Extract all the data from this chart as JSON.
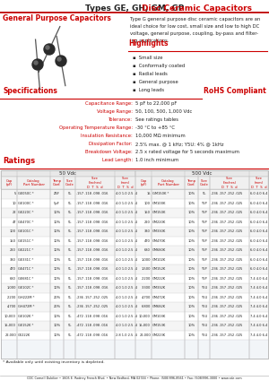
{
  "title": "Types GE, GH, GM, GP",
  "title2": "Disc Ceramic Capacitors",
  "section1": "General Purpose Capacitors",
  "desc_lines": [
    "Type G general purpose disc ceramic capacitors are an",
    "ideal choice for low cost, small size and low to high DC",
    "voltage, general purpose, coupling, by-pass and filter-",
    "ing applications."
  ],
  "highlights_title": "Highlights",
  "highlights": [
    "Small size",
    "Conformally coated",
    "Radial leads",
    "General purpose",
    "Long leads"
  ],
  "specs_title": "Specifications",
  "rohs": "RoHS Compliant",
  "ratings_title": "Ratings",
  "spec_items": [
    [
      "Capacitance Range:",
      "5 pF to 22,000 pF"
    ],
    [
      "Voltage Range:",
      "50, 100, 500, 1,000 Vdc"
    ],
    [
      "Tolerance:",
      "See ratings tables"
    ],
    [
      "Operating Temperature Range:",
      "-30 °C to +85 °C"
    ],
    [
      "Insulation Resistance:",
      "10,000 MΩ minimum"
    ],
    [
      "Dissipation Factor:",
      "2.5% max. @ 1 kHz; Y5U: 4% @ 1kHz"
    ],
    [
      "Breakdown Voltage:",
      "2.5 x rated voltage for 5 seconds maximum"
    ],
    [
      "Lead Length:",
      "1.0 inch minimum"
    ]
  ],
  "table_rows_50v": [
    [
      "5",
      "GE050C *",
      "Z5F",
      "5L",
      ".157 .118 .098 .016",
      "4.0 1.0 2.5 .4"
    ],
    [
      "10",
      "GE100C *",
      "5pF",
      "5L",
      ".157 .118 .098 .016",
      "4.0 1.0 2.5 .4"
    ],
    [
      "22",
      "GE220C *",
      "10%",
      "5L",
      ".157 .118 .098 .016",
      "4.0 1.0 2.5 .4"
    ],
    [
      "47",
      "GE470C *",
      "10%",
      "5L",
      ".157 .118 .098 .016",
      "4.0 1.0 2.5 .4"
    ],
    [
      "100",
      "GE101C *",
      "10%",
      "5L",
      ".157 .118 .098 .016",
      "4.0 1.0 2.5 .4"
    ],
    [
      "150",
      "GE151C *",
      "10%",
      "5L",
      ".157 .118 .098 .016",
      "4.0 1.0 2.5 .4"
    ],
    [
      "220",
      "GE221C *",
      "10%",
      "5L",
      ".157 .118 .098 .016",
      "4.0 1.0 2.5 .4"
    ],
    [
      "330",
      "GE331C *",
      "10%",
      "5L",
      ".157 .118 .098 .016",
      "4.0 1.0 2.5 .4"
    ],
    [
      "470",
      "GE471C *",
      "10%",
      "5L",
      ".157 .118 .098 .016",
      "4.0 1.0 2.5 .4"
    ],
    [
      "680",
      "GE681C *",
      "10%",
      "5L",
      ".157 .118 .098 .016",
      "4.0 1.0 2.5 .4"
    ],
    [
      "1,000",
      "GE102C *",
      "10%",
      "5L",
      ".157 .118 .098 .016",
      "4.0 1.0 2.5 .4"
    ],
    [
      "2,200",
      "GH222M *",
      "20%",
      "5L",
      ".236 .157 .252 .025",
      "4.0 1.0 2.5 .4"
    ],
    [
      "4,700",
      "GH472M *",
      "20%",
      "5L",
      ".236 .157 .252 .025",
      "4.0 1.0 2.5 .4"
    ],
    [
      "10,000",
      "GE102K *",
      "10%",
      "5L",
      ".472 .118 .098 .016",
      "4.0 1.0 2.5 .4"
    ],
    [
      "15,000",
      "GE152K *",
      "10%",
      "5L",
      ".472 .118 .098 .016",
      "4.0 1.0 2.5 .4"
    ],
    [
      "22,000",
      "GE222K",
      "10%",
      "5L",
      ".472 .118 .098 .016",
      "2.8 1.0 2.5 .4"
    ]
  ],
  "table_rows_500v": [
    [
      "15",
      "GM150K *",
      "10%",
      "5L",
      ".236 .157 .252 .025",
      "6.0 4.0 6.4 .6"
    ],
    [
      "100",
      "GM100K",
      "10%",
      "Y5P",
      ".236 .157 .252 .025",
      "6.0 4.0 6.4 .6"
    ],
    [
      "150",
      "GM150K",
      "10%",
      "Y5P",
      ".236 .157 .252 .025",
      "6.0 4.0 6.4 .6"
    ],
    [
      "220",
      "GM220K",
      "10%",
      "Y5P",
      ".236 .157 .252 .025",
      "6.0 4.0 6.4 .6"
    ],
    [
      "330",
      "GM330K",
      "10%",
      "Y5P",
      ".236 .157 .252 .025",
      "6.0 4.0 6.4 .6"
    ],
    [
      "470",
      "GM470K",
      "10%",
      "Y5P",
      ".236 .157 .252 .025",
      "6.0 4.0 6.4 .6"
    ],
    [
      "680",
      "GM680K",
      "10%",
      "Y5P",
      ".236 .157 .252 .025",
      "6.0 4.0 6.4 .6"
    ],
    [
      "1,000",
      "GM102K",
      "10%",
      "Y5P",
      ".236 .157 .252 .025",
      "6.0 4.0 6.4 .6"
    ],
    [
      "1,500",
      "GM152K",
      "10%",
      "Y5P",
      ".236 .157 .252 .025",
      "6.0 4.0 6.4 .6"
    ],
    [
      "2,200",
      "GM222K",
      "10%",
      "Y5P",
      ".236 .157 .252 .025",
      "7.4 4.0 6.4 .6"
    ],
    [
      "3,300",
      "GM332K",
      "10%",
      "Y5U",
      ".236 .157 .252 .025",
      "7.4 4.0 6.4 .6"
    ],
    [
      "4,700",
      "GM472K",
      "10%",
      "Y5U",
      ".236 .157 .252 .025",
      "7.4 4.0 6.4 .6"
    ],
    [
      "6,800",
      "GM682K",
      "10%",
      "Y5U",
      ".236 .157 .252 .025",
      "7.4 4.0 6.4 .6"
    ],
    [
      "10,000",
      "GM103K",
      "10%",
      "Y5U",
      ".236 .157 .252 .025",
      "7.4 4.0 6.4 .6"
    ],
    [
      "15,000",
      "GM153K",
      "10%",
      "Y5U",
      ".236 .157 .252 .025",
      "7.4 4.0 6.4 .6"
    ],
    [
      "22,000",
      "GM223K",
      "10%",
      "Y5U",
      ".236 .157 .252 .025",
      "7.4 4.0 6.4 .6"
    ]
  ],
  "footer": "CDC Cornell Dubilier • 1605 E. Rodney French Blvd. • New Bedford, MA 02744 • Phone: (508)996-8561 • Fax: (508)996-3000 • www.cde.com",
  "note": "* Available only until existing inventory is depleted.",
  "red_color": "#cc0000",
  "bg_color": "#ffffff",
  "watermark_color": "#b8c8dc"
}
